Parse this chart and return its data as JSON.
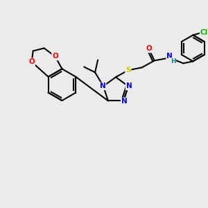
{
  "bg_color": "#ebebeb",
  "bond_color": "#000000",
  "atom_colors": {
    "N": "#0000ff",
    "O": "#ff0000",
    "S": "#cccc00",
    "Cl": "#00bb00",
    "C": "#000000",
    "H": "#008888"
  },
  "figsize": [
    3.0,
    3.0
  ],
  "dpi": 100
}
